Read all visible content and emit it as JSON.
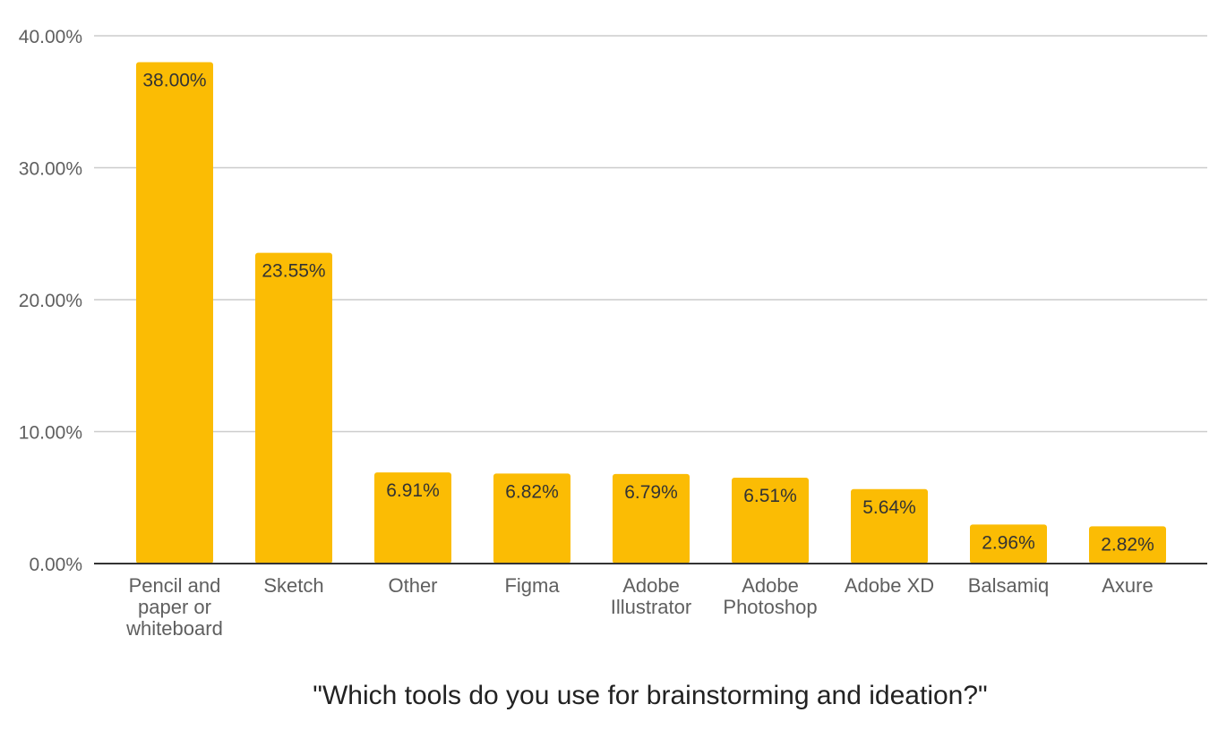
{
  "chart_data": {
    "type": "bar",
    "title": "\"Which tools do you use for brainstorming and ideation?\"",
    "xlabel": "",
    "ylabel": "",
    "ylim": [
      0,
      40
    ],
    "yticks": [
      "0.00%",
      "10.00%",
      "20.00%",
      "30.00%",
      "40.00%"
    ],
    "grid": true,
    "legend": "none",
    "bar_color": "#fbbc04",
    "categories": [
      "Pencil and paper or whiteboard",
      "Sketch",
      "Other",
      "Figma",
      "Adobe Illustrator",
      "Adobe Photoshop",
      "Adobe XD",
      "Balsamiq",
      "Axure"
    ],
    "category_lines": [
      [
        "Pencil and",
        "paper or",
        "whiteboard"
      ],
      [
        "Sketch"
      ],
      [
        "Other"
      ],
      [
        "Figma"
      ],
      [
        "Adobe",
        "Illustrator"
      ],
      [
        "Adobe",
        "Photoshop"
      ],
      [
        "Adobe XD"
      ],
      [
        "Balsamiq"
      ],
      [
        "Axure"
      ]
    ],
    "values": [
      38.0,
      23.55,
      6.91,
      6.82,
      6.79,
      6.51,
      5.64,
      2.96,
      2.82
    ],
    "value_labels": [
      "38.00%",
      "23.55%",
      "6.91%",
      "6.82%",
      "6.79%",
      "6.51%",
      "5.64%",
      "2.96%",
      "2.82%"
    ]
  }
}
